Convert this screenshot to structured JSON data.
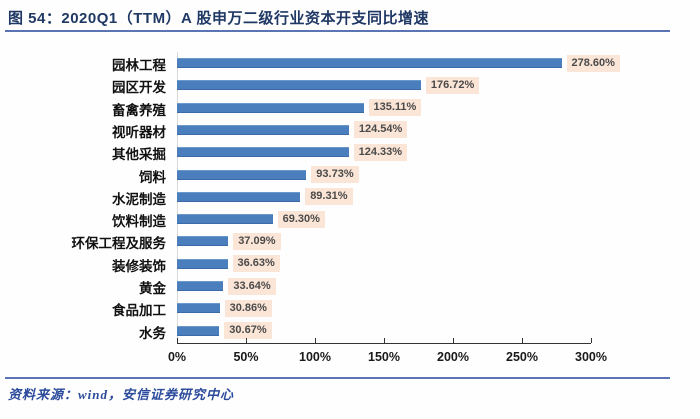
{
  "title": {
    "figure_number": "图 54：",
    "text": "2020Q1（TTM）A 股申万二级行业资本开支同比增速"
  },
  "footer": {
    "source_label": "资料来源：",
    "source_text": "wind，安信证券研究中心"
  },
  "colors": {
    "title_text": "#1f3864",
    "divider_blue": "#5a74b4",
    "bar_blue": "#4b7ebd",
    "value_chip_bg": "#fbe5d6",
    "value_chip_text": "#4a4a4a",
    "axis_text": "#1a1a1a"
  },
  "chart_data": {
    "type": "bar",
    "orientation": "horizontal",
    "title": "2020Q1（TTM）A 股申万二级行业资本开支同比增速",
    "xlabel": "",
    "ylabel": "",
    "xlim": [
      0,
      300
    ],
    "x_tick_values": [
      0,
      50,
      100,
      150,
      200,
      250,
      300
    ],
    "x_tick_labels": [
      "0%",
      "50%",
      "100%",
      "150%",
      "200%",
      "250%",
      "300%"
    ],
    "grid": false,
    "legend": false,
    "categories": [
      "园林工程",
      "园区开发",
      "畜禽养殖",
      "视听器材",
      "其他采掘",
      "饲料",
      "水泥制造",
      "饮料制造",
      "环保工程及服务",
      "装修装饰",
      "黄金",
      "食品加工",
      "水务"
    ],
    "values": [
      278.6,
      176.72,
      135.11,
      124.54,
      124.33,
      93.73,
      89.31,
      69.3,
      37.09,
      36.63,
      33.64,
      30.86,
      30.67
    ],
    "value_labels": [
      "278.60%",
      "176.72%",
      "135.11%",
      "124.54%",
      "124.33%",
      "93.73%",
      "89.31%",
      "69.30%",
      "37.09%",
      "36.63%",
      "33.64%",
      "30.86%",
      "30.67%"
    ]
  }
}
